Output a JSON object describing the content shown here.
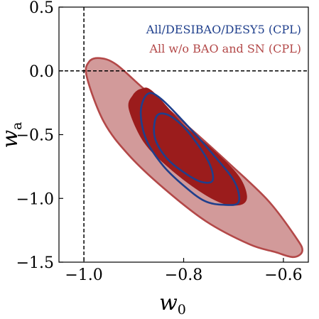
{
  "chart_data": {
    "type": "contour",
    "xlabel": "w",
    "xlabel_sub": "0",
    "ylabel": "w",
    "ylabel_sub": "a",
    "xlim": [
      -1.05,
      -0.55
    ],
    "ylim": [
      -1.5,
      0.5
    ],
    "xticks": [
      -1.0,
      -0.8,
      -0.6
    ],
    "xtick_labels": [
      "−1.0",
      "−0.8",
      "−0.6"
    ],
    "yticks": [
      0.5,
      0.0,
      -0.5,
      -1.0,
      -1.5
    ],
    "ytick_labels": [
      "0.5",
      "0.0",
      "−0.5",
      "−1.0",
      "−1.5"
    ],
    "reference_lines": [
      {
        "axis": "x",
        "value": -1.0,
        "style": "dashed"
      },
      {
        "axis": "y",
        "value": 0.0,
        "style": "dashed"
      }
    ],
    "legend_position": "top-right",
    "grid": false,
    "series": [
      {
        "name": "All/DESIBAO/DESY5 (CPL)",
        "color": "#1f3f8c",
        "style": "line-contours",
        "contours": [
          {
            "level": "68%",
            "points": [
              [
                -0.855,
                -0.36
              ],
              [
                -0.835,
                -0.34
              ],
              [
                -0.805,
                -0.42
              ],
              [
                -0.775,
                -0.56
              ],
              [
                -0.748,
                -0.73
              ],
              [
                -0.742,
                -0.86
              ],
              [
                -0.765,
                -0.87
              ],
              [
                -0.798,
                -0.8
              ],
              [
                -0.835,
                -0.68
              ],
              [
                -0.858,
                -0.52
              ]
            ]
          },
          {
            "level": "95%",
            "points": [
              [
                -0.886,
                -0.32
              ],
              [
                -0.872,
                -0.18
              ],
              [
                -0.845,
                -0.22
              ],
              [
                -0.79,
                -0.44
              ],
              [
                -0.74,
                -0.66
              ],
              [
                -0.698,
                -0.87
              ],
              [
                -0.69,
                -1.03
              ],
              [
                -0.72,
                -1.05
              ],
              [
                -0.758,
                -1.02
              ],
              [
                -0.8,
                -0.9
              ],
              [
                -0.842,
                -0.74
              ],
              [
                -0.875,
                -0.54
              ]
            ]
          }
        ]
      },
      {
        "name": "All w/o BAO and SN (CPL)",
        "color": "#b34848",
        "style": "filled-contours",
        "fill_colors": [
          "#d29a9a",
          "#9b1c1c"
        ],
        "contours": [
          {
            "level": "68%",
            "points": [
              [
                -0.91,
                -0.3
              ],
              [
                -0.902,
                -0.19
              ],
              [
                -0.885,
                -0.14
              ],
              [
                -0.862,
                -0.16
              ],
              [
                -0.8,
                -0.42
              ],
              [
                -0.74,
                -0.62
              ],
              [
                -0.69,
                -0.82
              ],
              [
                -0.673,
                -0.98
              ],
              [
                -0.685,
                -1.05
              ],
              [
                -0.722,
                -1.04
              ],
              [
                -0.77,
                -0.94
              ],
              [
                -0.83,
                -0.76
              ],
              [
                -0.88,
                -0.56
              ]
            ]
          },
          {
            "level": "95%",
            "points": [
              [
                -0.994,
                -0.05
              ],
              [
                -0.99,
                0.07
              ],
              [
                -0.968,
                0.1
              ],
              [
                -0.935,
                0.05
              ],
              [
                -0.88,
                -0.14
              ],
              [
                -0.79,
                -0.44
              ],
              [
                -0.705,
                -0.74
              ],
              [
                -0.63,
                -1.02
              ],
              [
                -0.576,
                -1.3
              ],
              [
                -0.562,
                -1.41
              ],
              [
                -0.58,
                -1.46
              ],
              [
                -0.617,
                -1.42
              ],
              [
                -0.668,
                -1.36
              ],
              [
                -0.755,
                -1.18
              ],
              [
                -0.84,
                -0.92
              ],
              [
                -0.91,
                -0.66
              ],
              [
                -0.96,
                -0.4
              ]
            ]
          }
        ]
      }
    ]
  }
}
